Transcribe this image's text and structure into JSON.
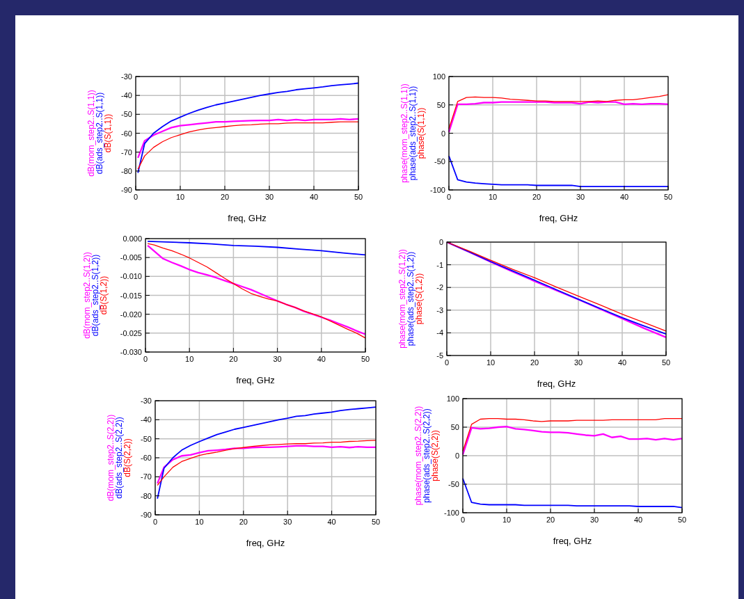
{
  "chart_data": [
    {
      "type": "line",
      "xlabel": "freq, GHz",
      "xlim": [
        0,
        50
      ],
      "xticks": [
        0,
        10,
        20,
        30,
        40,
        50
      ],
      "ylim": [
        -90,
        -30
      ],
      "yticks": [
        -90,
        -80,
        -70,
        -60,
        -50,
        -40,
        -30
      ],
      "grid": true,
      "x": [
        0.5,
        2,
        4,
        6,
        8,
        10,
        12,
        14,
        16,
        18,
        20,
        22,
        24,
        26,
        28,
        30,
        32,
        34,
        36,
        38,
        40,
        42,
        44,
        46,
        48,
        50
      ],
      "series": [
        {
          "name": "dB(mom_step2..S(1,1))",
          "color": "#ff00ff",
          "values": [
            -73,
            -64,
            -61,
            -59,
            -57,
            -56,
            -55.5,
            -55,
            -54.5,
            -54,
            -54,
            -53.7,
            -53.5,
            -53.3,
            -53.2,
            -53.2,
            -52.8,
            -53.2,
            -52.8,
            -53.2,
            -52.8,
            -52.8,
            -52.8,
            -52.4,
            -52.8,
            -52.4
          ]
        },
        {
          "name": "dB(ads_step2..S(1,1))",
          "color": "#0000ff",
          "values": [
            -81,
            -65.5,
            -60,
            -56.5,
            -53.5,
            -51.5,
            -49.5,
            -47.8,
            -46.3,
            -45,
            -44,
            -43,
            -42,
            -41,
            -40,
            -39.2,
            -38.4,
            -37.9,
            -37,
            -36.5,
            -36,
            -35.5,
            -34.8,
            -34.4,
            -34,
            -33.5
          ]
        },
        {
          "name": "dB(S(1,1))",
          "color": "#ff0000",
          "values": [
            -79,
            -72,
            -67.5,
            -64.5,
            -62.3,
            -60.8,
            -59.3,
            -58.3,
            -57.5,
            -57,
            -56.5,
            -56,
            -55.6,
            -55.5,
            -55.2,
            -55,
            -55,
            -54.6,
            -54.5,
            -54.5,
            -54.5,
            -54.5,
            -54.2,
            -54,
            -54,
            -54
          ]
        }
      ]
    },
    {
      "type": "line",
      "xlabel": "freq, GHz",
      "xlim": [
        0,
        50
      ],
      "xticks": [
        0,
        10,
        20,
        30,
        40,
        50
      ],
      "ylim": [
        -100,
        100
      ],
      "yticks": [
        -100,
        -50,
        0,
        50,
        100
      ],
      "grid": true,
      "x": [
        0,
        2,
        4,
        6,
        8,
        10,
        12,
        14,
        16,
        18,
        20,
        22,
        24,
        26,
        28,
        30,
        32,
        34,
        36,
        38,
        40,
        42,
        44,
        46,
        48,
        50
      ],
      "series": [
        {
          "name": "phase(mom_step2..S(1,1))",
          "color": "#ff00ff",
          "values": [
            2,
            51,
            51,
            52,
            54,
            54,
            55,
            55,
            55,
            55,
            55,
            55,
            54,
            54,
            54,
            52,
            55,
            54,
            55,
            55,
            51,
            52,
            51,
            52,
            52,
            51
          ]
        },
        {
          "name": "phase(ads_step2..S(1,1))",
          "color": "#0000ff",
          "values": [
            -40,
            -82,
            -86,
            -88,
            -89,
            -90,
            -91,
            -91,
            -91,
            -91,
            -92,
            -92,
            -92,
            -92,
            -92,
            -94,
            -94,
            -94,
            -94,
            -94,
            -94,
            -94,
            -94,
            -94,
            -94,
            -94
          ]
        },
        {
          "name": "phase(S(1,1))",
          "color": "#ff0000",
          "values": [
            8,
            56,
            63,
            64,
            63,
            63,
            62,
            60,
            59,
            58,
            57,
            57,
            56,
            56,
            56,
            56,
            56,
            57,
            56,
            58,
            59,
            59,
            61,
            63,
            65,
            68
          ]
        }
      ]
    },
    {
      "type": "line",
      "xlabel": "freq, GHz",
      "xlim": [
        0,
        50
      ],
      "xticks": [
        0,
        10,
        20,
        30,
        40,
        50
      ],
      "ylim": [
        -0.03,
        0
      ],
      "yticks": [
        {
          "value": -0.03,
          "label": "-0.030"
        },
        {
          "value": -0.025,
          "label": "-0.025"
        },
        {
          "value": -0.02,
          "label": "-0.020"
        },
        {
          "value": -0.015,
          "label": "-0.015"
        },
        {
          "value": -0.01,
          "label": "-0.010"
        },
        {
          "value": -0.005,
          "label": "-0.005"
        },
        {
          "value": 0,
          "label": "0.000"
        }
      ],
      "grid": true,
      "x": [
        0.5,
        4,
        6,
        8,
        10,
        12,
        14,
        16,
        18,
        20,
        22,
        24,
        26,
        28,
        30,
        32,
        34,
        36,
        38,
        40,
        42,
        44,
        46,
        48,
        50
      ],
      "series": [
        {
          "name": "dB(mom_step2..S(1,2))",
          "color": "#ff00ff",
          "values": [
            -0.0018,
            -0.0053,
            -0.0063,
            -0.0072,
            -0.0082,
            -0.009,
            -0.0096,
            -0.0103,
            -0.0111,
            -0.0119,
            -0.0127,
            -0.0135,
            -0.0145,
            -0.0155,
            -0.0165,
            -0.0174,
            -0.0182,
            -0.0192,
            -0.02,
            -0.0208,
            -0.0216,
            -0.0225,
            -0.0234,
            -0.0244,
            -0.0253
          ]
        },
        {
          "name": "dB(ads_step2..S(1,2))",
          "color": "#0000ff",
          "x": [
            0.5,
            5,
            10,
            15,
            20,
            25,
            30,
            35,
            40,
            45,
            50
          ],
          "values": [
            -0.0007,
            -0.0009,
            -0.0011,
            -0.0014,
            -0.0018,
            -0.002,
            -0.0023,
            -0.0028,
            -0.0032,
            -0.0038,
            -0.0043
          ]
        },
        {
          "name": "dB(S(1,2))",
          "color": "#ff0000",
          "x": [
            0.5,
            2,
            4,
            6,
            8,
            10,
            12,
            14,
            16,
            18,
            20,
            22,
            24,
            26,
            28,
            30,
            32,
            34,
            36,
            38,
            40,
            42,
            44,
            46,
            48,
            50
          ],
          "values": [
            -0.0013,
            -0.0017,
            -0.0025,
            -0.0032,
            -0.0041,
            -0.0051,
            -0.0063,
            -0.0075,
            -0.009,
            -0.0105,
            -0.0119,
            -0.0133,
            -0.0145,
            -0.0153,
            -0.016,
            -0.0165,
            -0.0174,
            -0.0182,
            -0.0191,
            -0.0199,
            -0.0207,
            -0.0218,
            -0.0229,
            -0.024,
            -0.025,
            -0.0263
          ]
        }
      ]
    },
    {
      "type": "line",
      "xlabel": "freq, GHz",
      "xlim": [
        0,
        50
      ],
      "xticks": [
        0,
        10,
        20,
        30,
        40,
        50
      ],
      "ylim": [
        -5,
        0
      ],
      "yticks": [
        -5,
        -4,
        -3,
        -2,
        -1,
        0
      ],
      "grid": true,
      "x": [
        0,
        5,
        10,
        15,
        20,
        25,
        30,
        35,
        40,
        45,
        50
      ],
      "series": [
        {
          "name": "phase(mom_step2..S(1,2))",
          "color": "#ff00ff",
          "values": [
            0,
            -0.43,
            -0.87,
            -1.3,
            -1.72,
            -2.13,
            -2.53,
            -2.95,
            -3.37,
            -3.8,
            -4.2
          ]
        },
        {
          "name": "phase(ads_step2..S(1,2))",
          "color": "#0000ff",
          "values": [
            0,
            -0.42,
            -0.86,
            -1.27,
            -1.68,
            -2.1,
            -2.52,
            -2.93,
            -3.33,
            -3.7,
            -4.05
          ]
        },
        {
          "name": "phase(S(1,2))",
          "color": "#ff0000",
          "values": [
            0,
            -0.39,
            -0.8,
            -1.2,
            -1.57,
            -1.98,
            -2.38,
            -2.77,
            -3.18,
            -3.55,
            -3.92
          ]
        }
      ]
    },
    {
      "type": "line",
      "xlabel": "freq, GHz",
      "xlim": [
        0,
        50
      ],
      "xticks": [
        0,
        10,
        20,
        30,
        40,
        50
      ],
      "ylim": [
        -90,
        -30
      ],
      "yticks": [
        -90,
        -80,
        -70,
        -60,
        -50,
        -40,
        -30
      ],
      "grid": true,
      "x": [
        0.5,
        2,
        4,
        6,
        8,
        10,
        12,
        14,
        16,
        18,
        20,
        22,
        24,
        26,
        28,
        30,
        32,
        34,
        36,
        38,
        40,
        42,
        44,
        46,
        48,
        50
      ],
      "series": [
        {
          "name": "dB(mom_step2..S(2,2))",
          "color": "#ff00ff",
          "values": [
            -73.5,
            -65,
            -61,
            -59,
            -58.5,
            -57.3,
            -56.3,
            -56,
            -55.6,
            -55,
            -55,
            -54.6,
            -54.5,
            -54.5,
            -54.3,
            -54,
            -53.7,
            -53.7,
            -54,
            -54,
            -54.5,
            -54.2,
            -54.6,
            -54.2,
            -54.5,
            -54.5
          ]
        },
        {
          "name": "dB(ads_step2..S(2,2))",
          "color": "#0000ff",
          "values": [
            -81.5,
            -65.5,
            -60,
            -56,
            -53.5,
            -51.5,
            -49.6,
            -47.8,
            -46.4,
            -45,
            -44,
            -43,
            -42,
            -41,
            -40,
            -39.2,
            -38.2,
            -37.8,
            -37,
            -36.5,
            -36,
            -35.2,
            -34.6,
            -34.2,
            -33.8,
            -33.3
          ]
        },
        {
          "name": "dB(S(2,2))",
          "color": "#ff0000",
          "values": [
            -74.5,
            -70,
            -65,
            -62,
            -60.3,
            -58.8,
            -57.8,
            -57,
            -56,
            -55.2,
            -54.6,
            -54,
            -53.6,
            -53.2,
            -53,
            -52.7,
            -52.6,
            -52.6,
            -52.3,
            -52.2,
            -51.8,
            -51.8,
            -51.4,
            -51.3,
            -51,
            -50.8
          ]
        }
      ]
    },
    {
      "type": "line",
      "xlabel": "freq, GHz",
      "xlim": [
        0,
        50
      ],
      "xticks": [
        0,
        10,
        20,
        30,
        40,
        50
      ],
      "ylim": [
        -100,
        100
      ],
      "yticks": [
        -100,
        -50,
        0,
        50,
        100
      ],
      "grid": true,
      "x": [
        0,
        2,
        4,
        6,
        8,
        10,
        12,
        14,
        16,
        18,
        20,
        22,
        24,
        26,
        28,
        30,
        32,
        34,
        36,
        38,
        40,
        42,
        44,
        46,
        48,
        50
      ],
      "series": [
        {
          "name": "phase(mom_step2..S(2,2))",
          "color": "#ff00ff",
          "values": [
            2,
            49,
            47,
            48,
            50,
            51,
            47,
            46,
            44,
            42,
            41,
            41,
            40,
            38,
            36,
            35,
            38,
            32,
            34,
            29,
            29,
            30,
            28,
            30,
            28,
            30
          ]
        },
        {
          "name": "phase(ads_step2..S(2,2))",
          "color": "#0000ff",
          "values": [
            -40,
            -82,
            -85,
            -86,
            -86,
            -86,
            -86,
            -87,
            -87,
            -87,
            -87,
            -87,
            -87,
            -88,
            -88,
            -88,
            -88,
            -88,
            -88,
            -88,
            -89,
            -89,
            -89,
            -89,
            -89,
            -91
          ]
        },
        {
          "name": "phase(S(2,2))",
          "color": "#ff0000",
          "values": [
            8,
            55,
            64,
            65,
            65,
            64,
            64,
            63,
            61,
            60,
            61,
            61,
            61,
            62,
            62,
            62,
            62,
            63,
            63,
            63,
            63,
            63,
            63,
            65,
            65,
            65
          ]
        }
      ]
    }
  ]
}
